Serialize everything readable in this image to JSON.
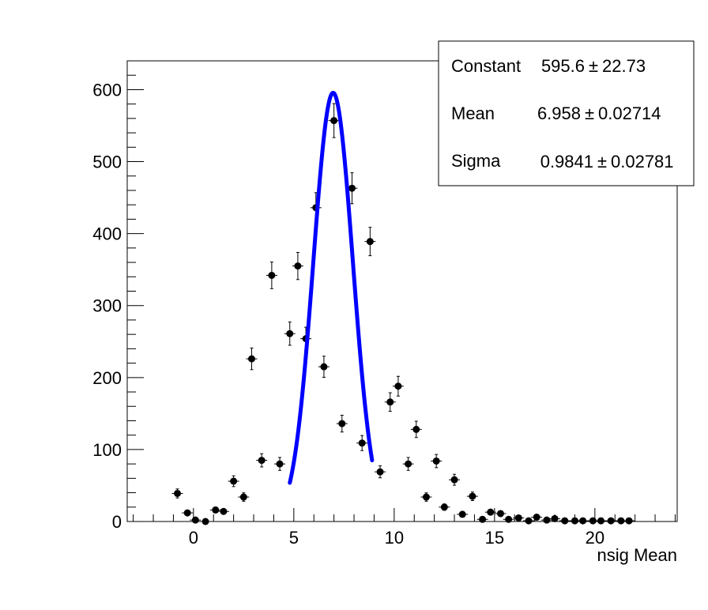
{
  "chart_data": {
    "type": "scatter",
    "xlabel": "nsig Mean",
    "xlim": [
      -3.3,
      24.1
    ],
    "ylim": [
      0,
      640
    ],
    "x_ticks": [
      0,
      5,
      10,
      15,
      20
    ],
    "y_ticks": [
      0,
      100,
      200,
      300,
      400,
      500,
      600
    ],
    "grid": false,
    "series": [
      {
        "style": "markers-with-errorbars",
        "color": "#000000",
        "points": [
          [
            -0.8,
            39
          ],
          [
            -0.3,
            12
          ],
          [
            0.1,
            2
          ],
          [
            0.6,
            0
          ],
          [
            1.1,
            16
          ],
          [
            1.5,
            14
          ],
          [
            2.0,
            56
          ],
          [
            2.5,
            34
          ],
          [
            2.9,
            226
          ],
          [
            3.4,
            85
          ],
          [
            3.9,
            342
          ],
          [
            4.3,
            80
          ],
          [
            4.8,
            261
          ],
          [
            5.2,
            355
          ],
          [
            5.6,
            254
          ],
          [
            6.1,
            436
          ],
          [
            6.5,
            215
          ],
          [
            7.0,
            557
          ],
          [
            7.4,
            136
          ],
          [
            7.9,
            463
          ],
          [
            8.4,
            109
          ],
          [
            8.8,
            389
          ],
          [
            9.3,
            69
          ],
          [
            9.8,
            166
          ],
          [
            10.2,
            188
          ],
          [
            10.7,
            80
          ],
          [
            11.1,
            128
          ],
          [
            11.6,
            34
          ],
          [
            12.1,
            84
          ],
          [
            12.5,
            20
          ],
          [
            13.0,
            58
          ],
          [
            13.4,
            10
          ],
          [
            13.9,
            35
          ],
          [
            14.4,
            3
          ],
          [
            14.8,
            13
          ],
          [
            15.3,
            11
          ],
          [
            15.7,
            3
          ],
          [
            16.2,
            5
          ],
          [
            16.7,
            1
          ],
          [
            17.1,
            6
          ],
          [
            17.6,
            2
          ],
          [
            18.0,
            4
          ],
          [
            18.5,
            1
          ],
          [
            19.0,
            1
          ],
          [
            19.4,
            1
          ],
          [
            19.9,
            1
          ],
          [
            20.3,
            1
          ],
          [
            20.8,
            1
          ],
          [
            21.3,
            1
          ],
          [
            21.7,
            1
          ]
        ]
      },
      {
        "type": "line",
        "style": "gaussian-fit",
        "color": "#0000ff",
        "x_range": [
          4.8,
          8.9
        ],
        "params": {
          "constant": 595.6,
          "mean": 6.958,
          "sigma": 0.9841
        }
      }
    ],
    "stats_box": {
      "placement": "top-right",
      "rows": [
        {
          "label": "Constant",
          "value": "595.6",
          "error": "22.73"
        },
        {
          "label": "Mean",
          "value": "6.958",
          "error": "0.02714"
        },
        {
          "label": "Sigma",
          "value": "0.9841",
          "error": "0.02781"
        }
      ],
      "pm_symbol": "±"
    }
  }
}
